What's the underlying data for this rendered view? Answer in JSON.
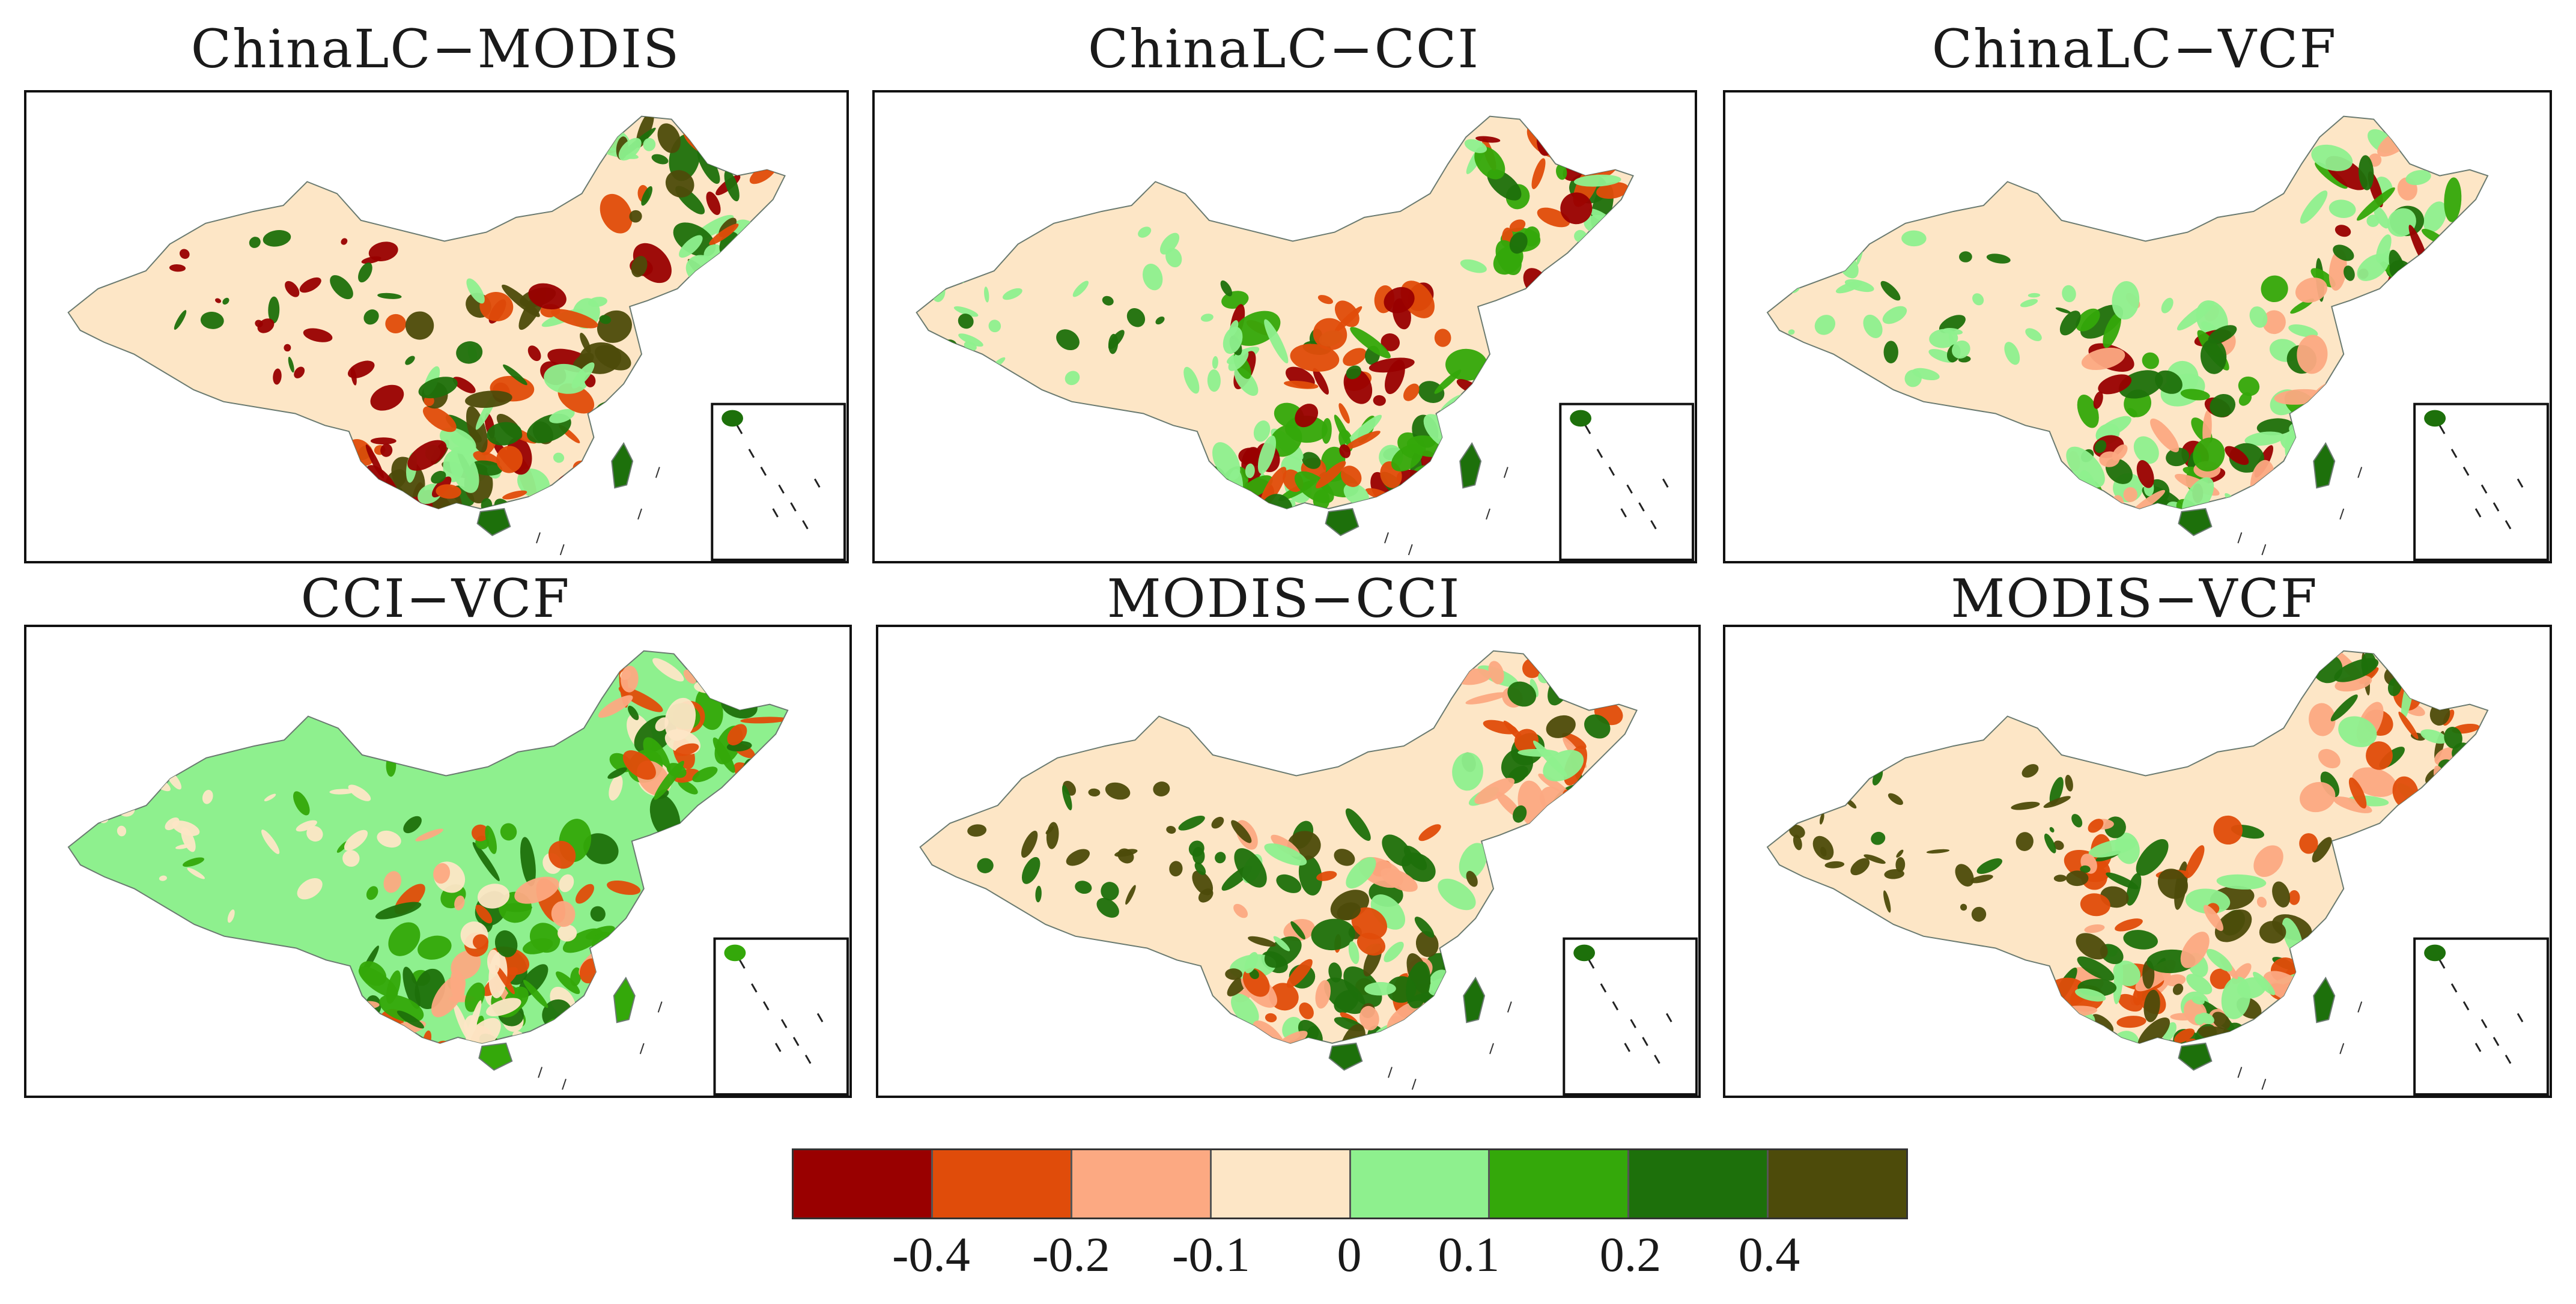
{
  "colors": {
    "c0": "#990000",
    "c1": "#e04c0a",
    "c2": "#fca982",
    "c3": "#fde6c6",
    "c4": "#8ef08e",
    "c5": "#34a80a",
    "c6": "#1d700b",
    "c7": "#4d4b0a",
    "frame": "#111111",
    "coast": "#6a7a70",
    "inset_border": "#111111"
  },
  "panels": [
    {
      "title": "ChinaLC−MODIS",
      "base": "#fde6c6",
      "accents": [
        "#1d700b",
        "#990000",
        "#e04c0a",
        "#8ef08e",
        "#4d4b0a"
      ]
    },
    {
      "title": "ChinaLC−CCI",
      "base": "#fde6c6",
      "accents": [
        "#1d700b",
        "#8ef08e",
        "#34a80a",
        "#e04c0a",
        "#990000"
      ]
    },
    {
      "title": "ChinaLC−VCF",
      "base": "#fde6c6",
      "accents": [
        "#1d700b",
        "#8ef08e",
        "#34a80a",
        "#990000",
        "#fca982"
      ]
    },
    {
      "title": "CCI−VCF",
      "base": "#8ef08e",
      "accents": [
        "#34a80a",
        "#fde6c6",
        "#fca982",
        "#e04c0a",
        "#1d700b"
      ]
    },
    {
      "title": "MODIS−CCI",
      "base": "#fde6c6",
      "accents": [
        "#1d700b",
        "#4d4b0a",
        "#fca982",
        "#e04c0a",
        "#8ef08e"
      ]
    },
    {
      "title": "MODIS−VCF",
      "base": "#fde6c6",
      "accents": [
        "#1d700b",
        "#4d4b0a",
        "#fca982",
        "#e04c0a",
        "#8ef08e"
      ]
    }
  ],
  "legend": {
    "colors": [
      "#990000",
      "#e04c0a",
      "#fca982",
      "#fde6c6",
      "#8ef08e",
      "#34a80a",
      "#1d700b",
      "#4d4b0a"
    ],
    "ticks": [
      "-0.4",
      "-0.2",
      "-0.1",
      "0",
      "0.1",
      "0.2",
      "0.4"
    ]
  }
}
